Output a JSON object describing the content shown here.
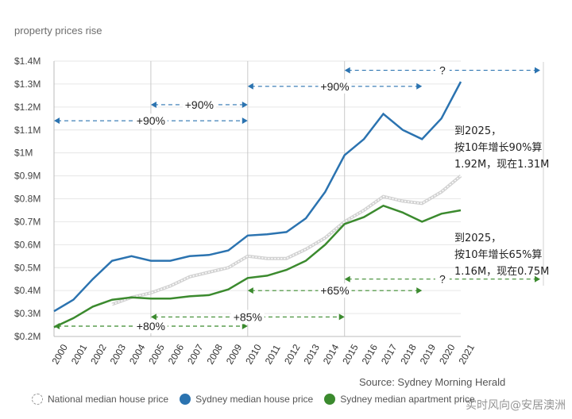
{
  "subtitle": "property prices rise",
  "source": "Source: Sydney Morning Herald",
  "legend": {
    "national": "National median house price",
    "house": "Sydney median house price",
    "apartment": "Sydney median apartment price"
  },
  "notes": {
    "house": "到2025，\n按10年增长90%算\n1.92M，现在1.31M",
    "apartment": "到2025，\n按10年增长65%算\n1.16M，现在0.75M"
  },
  "watermark": "实时风向@安居澳洲",
  "chart_data": {
    "type": "line",
    "x": [
      2000,
      2001,
      2002,
      2003,
      2004,
      2005,
      2006,
      2007,
      2008,
      2009,
      2010,
      2011,
      2012,
      2013,
      2014,
      2015,
      2016,
      2017,
      2018,
      2019,
      2020,
      2021
    ],
    "ylim": [
      0.2,
      1.4
    ],
    "yticks": [
      "$0.2M",
      "$0.3M",
      "$0.4M",
      "$0.5M",
      "$0.6M",
      "$0.7M",
      "$0.8M",
      "$0.9M",
      "$1M",
      "$1.1M",
      "$1.2M",
      "$1.3M",
      "$1.4M"
    ],
    "series": [
      {
        "name": "National median house price",
        "color": "#b8b8b8",
        "style": "dashed",
        "values": [
          null,
          null,
          null,
          0.34,
          0.37,
          0.39,
          0.42,
          0.46,
          0.48,
          0.5,
          0.55,
          0.54,
          0.54,
          0.58,
          0.63,
          0.7,
          0.75,
          0.81,
          0.79,
          0.78,
          0.83,
          0.9
        ]
      },
      {
        "name": "Sydney median house price",
        "color": "#2b73b0",
        "values": [
          0.31,
          0.36,
          0.45,
          0.53,
          0.55,
          0.53,
          0.53,
          0.55,
          0.555,
          0.575,
          0.64,
          0.645,
          0.655,
          0.715,
          0.83,
          0.99,
          1.06,
          1.17,
          1.1,
          1.06,
          1.15,
          1.31
        ]
      },
      {
        "name": "Sydney median apartment price",
        "color": "#3b8a2e",
        "values": [
          0.24,
          0.28,
          0.33,
          0.36,
          0.37,
          0.365,
          0.365,
          0.375,
          0.38,
          0.405,
          0.455,
          0.465,
          0.49,
          0.53,
          0.6,
          0.69,
          0.72,
          0.77,
          0.74,
          0.7,
          0.735,
          0.75
        ]
      }
    ],
    "annotations": [
      {
        "label": "+90%",
        "from": 2000,
        "to": 2010,
        "y": 1.14,
        "color": "#2b73b0"
      },
      {
        "label": "+90%",
        "from": 2005,
        "to": 2010,
        "y": 1.21,
        "color": "#2b73b0"
      },
      {
        "label": "+90%",
        "from": 2010,
        "to": 2019,
        "y": 1.29,
        "color": "#2b73b0"
      },
      {
        "label": "?",
        "from": 2015,
        "to": 2025,
        "y": 1.36,
        "color": "#2b73b0"
      },
      {
        "label": "+80%",
        "from": 2000,
        "to": 2010,
        "y": 0.245,
        "color": "#3b8a2e"
      },
      {
        "label": "+85%",
        "from": 2005,
        "to": 2015,
        "y": 0.285,
        "color": "#3b8a2e"
      },
      {
        "label": "+65%",
        "from": 2010,
        "to": 2019,
        "y": 0.4,
        "color": "#3b8a2e"
      },
      {
        "label": "?",
        "from": 2015,
        "to": 2025,
        "y": 0.45,
        "color": "#3b8a2e"
      }
    ],
    "vlines": [
      2005,
      2010,
      2015
    ],
    "legend_position": "bottom"
  }
}
